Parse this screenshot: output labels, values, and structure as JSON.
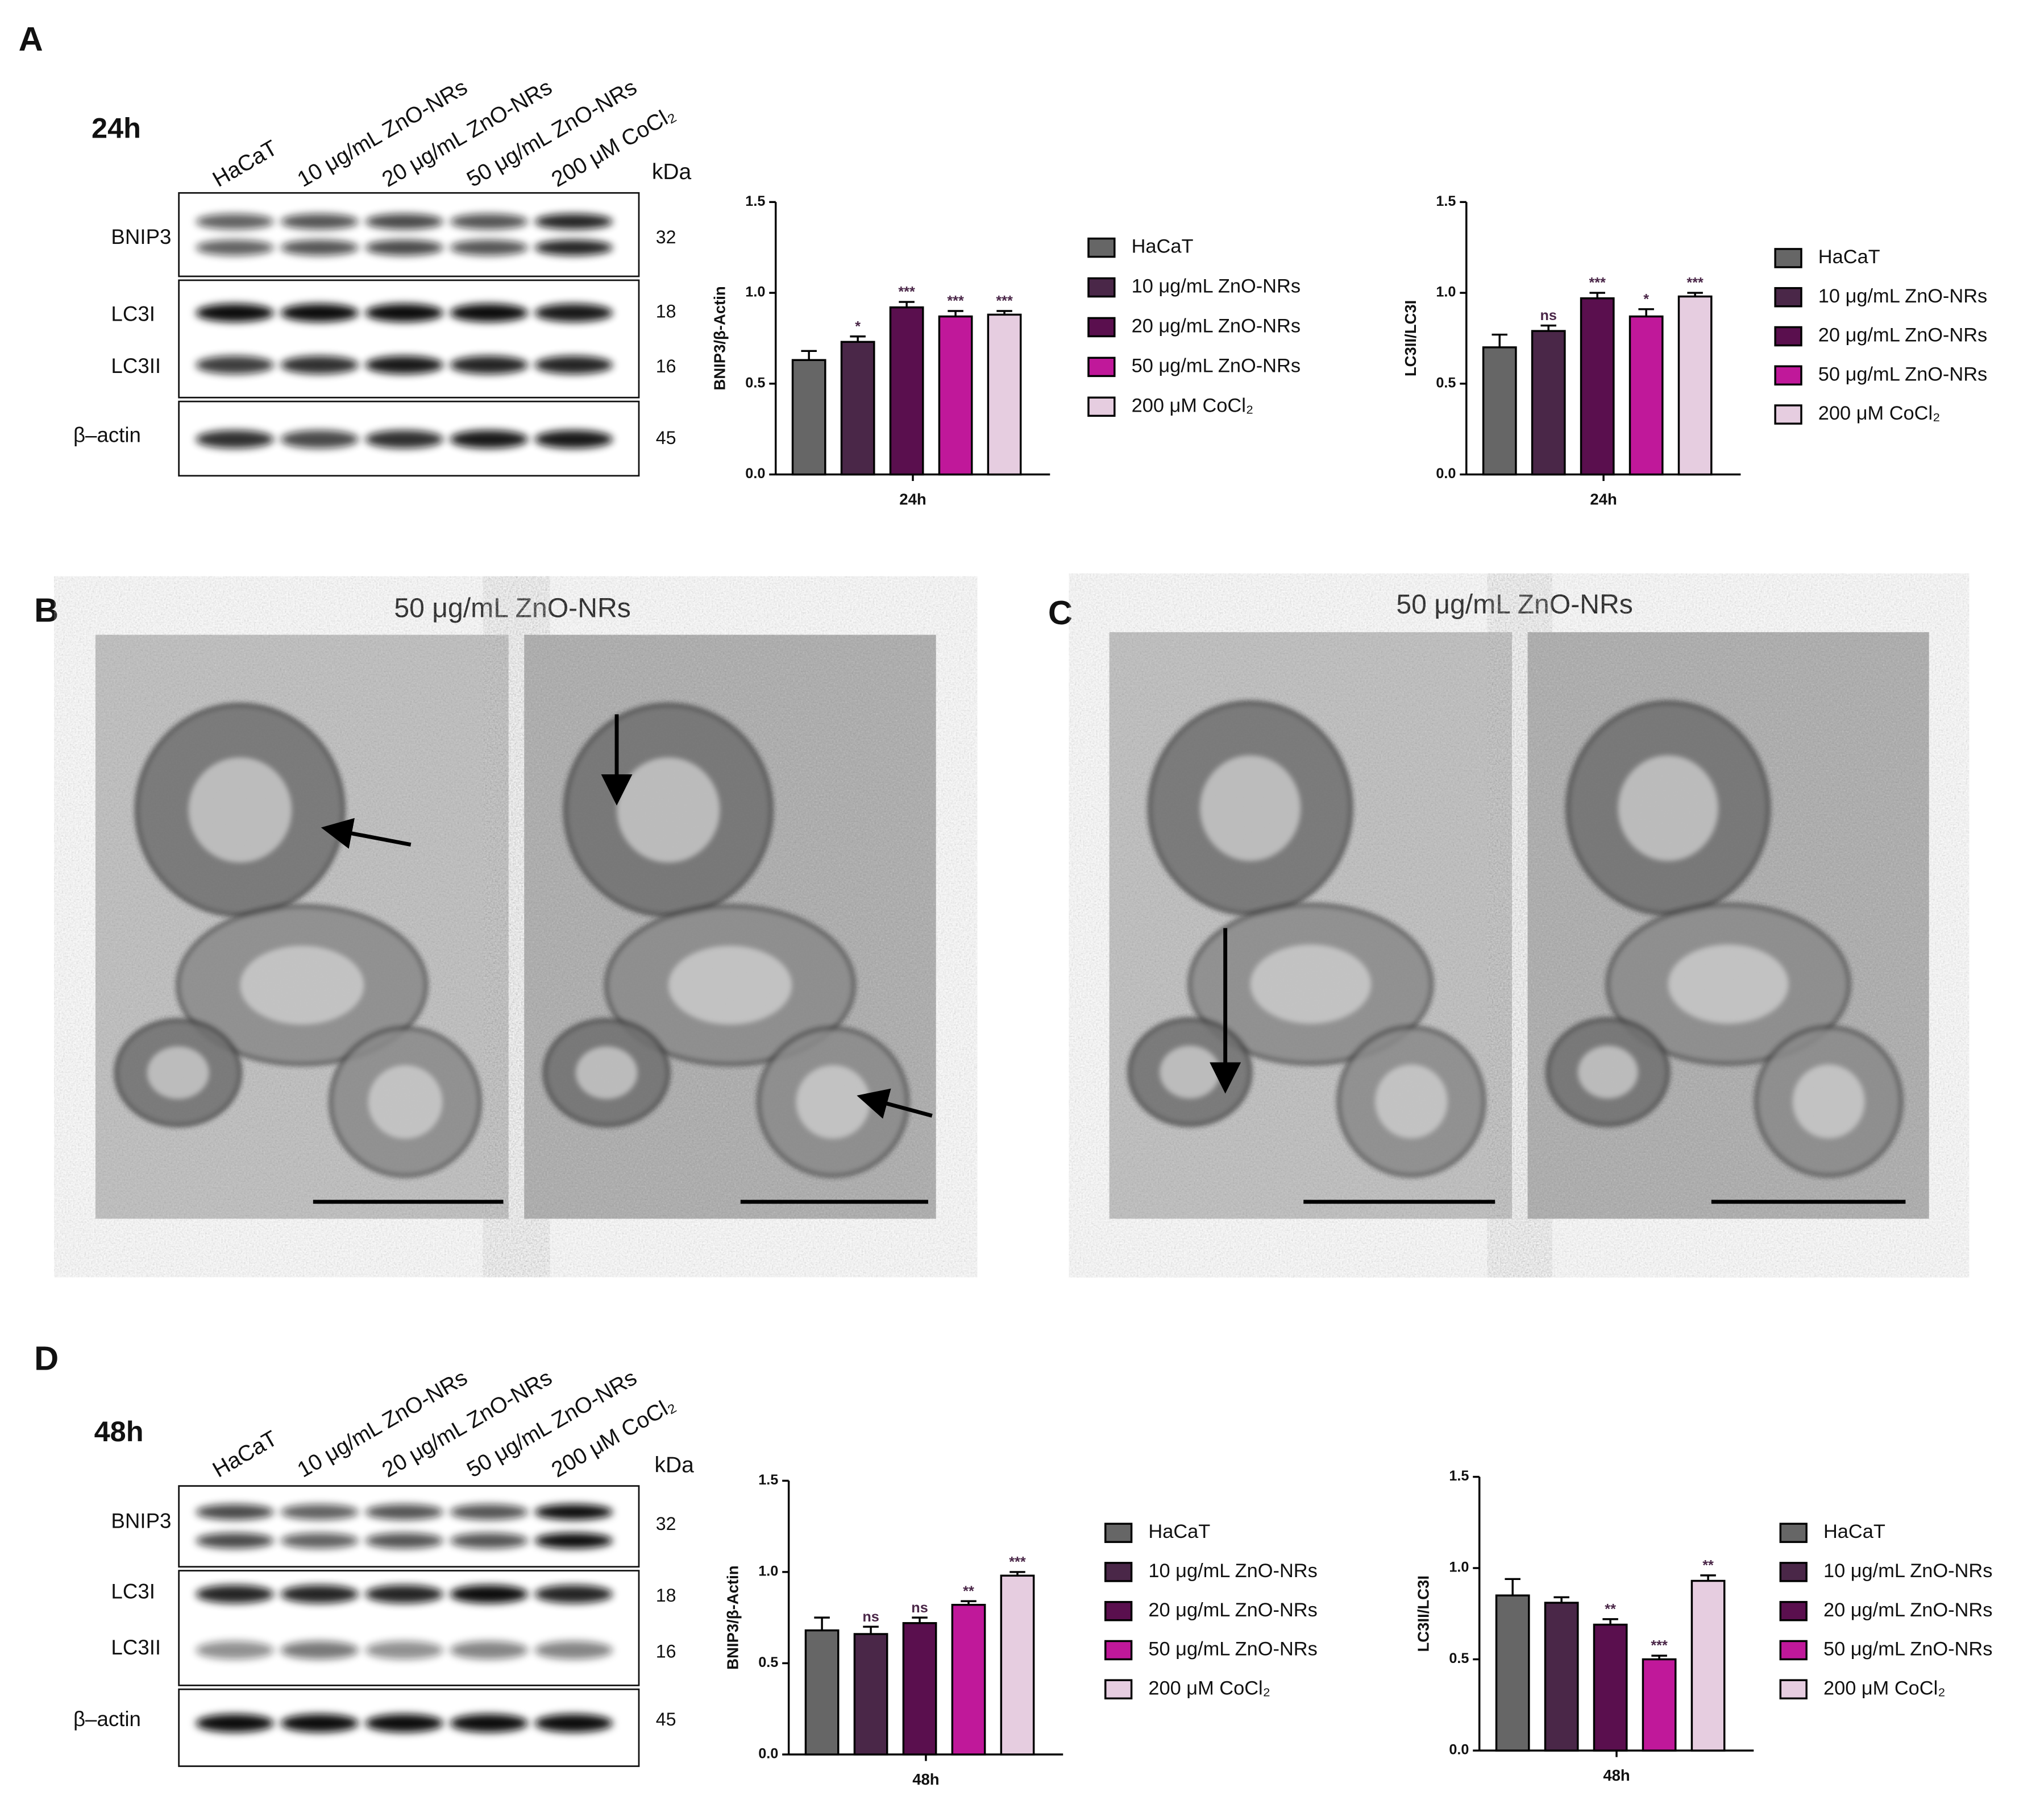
{
  "chart_data": [
    {
      "type": "bar",
      "ylabel": "BNIP3/β-Actin",
      "categories": [
        "24h"
      ],
      "ylim": [
        0,
        1.5
      ],
      "yticks": [
        {
          "value": 0,
          "label": "0.0"
        },
        {
          "value": 0.5,
          "label": "0.5"
        },
        {
          "value": 1,
          "label": "1.0"
        },
        {
          "value": 1.5,
          "label": "1.5"
        }
      ],
      "series": [
        {
          "name": "HaCaT",
          "color": "#666666",
          "values": [
            0.63
          ],
          "errors": [
            0.05
          ]
        },
        {
          "name": "10 μg/mL ZnO-NRs",
          "color": "#4a2748",
          "values": [
            0.73
          ],
          "errors": [
            0.03
          ],
          "annotations": [
            "*"
          ]
        },
        {
          "name": "20 μg/mL ZnO-NRs",
          "color": "#5a0f4e",
          "values": [
            0.92
          ],
          "errors": [
            0.03
          ],
          "annotations": [
            "***"
          ]
        },
        {
          "name": "50 μg/mL ZnO-NRs",
          "color": "#c0189a",
          "values": [
            0.87
          ],
          "errors": [
            0.03
          ],
          "annotations": [
            "***"
          ]
        },
        {
          "name": "200 μM CoCl₂",
          "color": "#e6cde0",
          "values": [
            0.88
          ],
          "errors": [
            0.02
          ],
          "annotations": [
            "***"
          ]
        }
      ]
    },
    {
      "type": "bar",
      "ylabel": "LC3II/LC3I",
      "categories": [
        "24h"
      ],
      "ylim": [
        0,
        1.5
      ],
      "yticks": [
        {
          "value": 0,
          "label": "0.0"
        },
        {
          "value": 0.5,
          "label": "0.5"
        },
        {
          "value": 1,
          "label": "1.0"
        },
        {
          "value": 1.5,
          "label": "1.5"
        }
      ],
      "series": [
        {
          "name": "HaCaT",
          "color": "#666666",
          "values": [
            0.7
          ],
          "errors": [
            0.07
          ]
        },
        {
          "name": "10 μg/mL ZnO-NRs",
          "color": "#4a2748",
          "values": [
            0.79
          ],
          "errors": [
            0.03
          ],
          "annotations": [
            "ns"
          ]
        },
        {
          "name": "20 μg/mL ZnO-NRs",
          "color": "#5a0f4e",
          "values": [
            0.97
          ],
          "errors": [
            0.03
          ],
          "annotations": [
            "***"
          ]
        },
        {
          "name": "50 μg/mL ZnO-NRs",
          "color": "#c0189a",
          "values": [
            0.87
          ],
          "errors": [
            0.04
          ],
          "annotations": [
            "*"
          ]
        },
        {
          "name": "200 μM CoCl₂",
          "color": "#e6cde0",
          "values": [
            0.98
          ],
          "errors": [
            0.02
          ],
          "annotations": [
            "***"
          ]
        }
      ]
    },
    {
      "type": "bar",
      "ylabel": "BNIP3/β-Actin",
      "categories": [
        "48h"
      ],
      "ylim": [
        0,
        1.5
      ],
      "yticks": [
        {
          "value": 0,
          "label": "0.0"
        },
        {
          "value": 0.5,
          "label": "0.5"
        },
        {
          "value": 1,
          "label": "1.0"
        },
        {
          "value": 1.5,
          "label": "1.5"
        }
      ],
      "series": [
        {
          "name": "HaCaT",
          "color": "#666666",
          "values": [
            0.68
          ],
          "errors": [
            0.07
          ]
        },
        {
          "name": "10 μg/mL ZnO-NRs",
          "color": "#4a2748",
          "values": [
            0.66
          ],
          "errors": [
            0.04
          ],
          "annotations": [
            "ns"
          ]
        },
        {
          "name": "20 μg/mL ZnO-NRs",
          "color": "#5a0f4e",
          "values": [
            0.72
          ],
          "errors": [
            0.03
          ],
          "annotations": [
            "ns"
          ]
        },
        {
          "name": "50 μg/mL ZnO-NRs",
          "color": "#c0189a",
          "values": [
            0.82
          ],
          "errors": [
            0.02
          ],
          "annotations": [
            "**"
          ]
        },
        {
          "name": "200 μM CoCl₂",
          "color": "#e6cde0",
          "values": [
            0.98
          ],
          "errors": [
            0.02
          ],
          "annotations": [
            "***"
          ]
        }
      ]
    },
    {
      "type": "bar",
      "ylabel": "LC3II/LC3I",
      "categories": [
        "48h"
      ],
      "ylim": [
        0,
        1.5
      ],
      "yticks": [
        {
          "value": 0,
          "label": "0.0"
        },
        {
          "value": 0.5,
          "label": "0.5"
        },
        {
          "value": 1,
          "label": "1.0"
        },
        {
          "value": 1.5,
          "label": "1.5"
        }
      ],
      "series": [
        {
          "name": "HaCaT",
          "color": "#666666",
          "values": [
            0.85
          ],
          "errors": [
            0.09
          ]
        },
        {
          "name": "10 μg/mL ZnO-NRs",
          "color": "#4a2748",
          "values": [
            0.81
          ],
          "errors": [
            0.03
          ]
        },
        {
          "name": "20 μg/mL ZnO-NRs",
          "color": "#5a0f4e",
          "values": [
            0.69
          ],
          "errors": [
            0.03
          ],
          "annotations": [
            "**"
          ]
        },
        {
          "name": "50 μg/mL ZnO-NRs",
          "color": "#c0189a",
          "values": [
            0.5
          ],
          "errors": [
            0.02
          ],
          "annotations": [
            "***"
          ]
        },
        {
          "name": "200 μM CoCl₂",
          "color": "#e6cde0",
          "values": [
            0.93
          ],
          "errors": [
            0.03
          ],
          "annotations": [
            "**"
          ]
        }
      ]
    }
  ],
  "panels": {
    "A": {
      "label": "A",
      "time": "24h",
      "lanes": [
        "HaCaT",
        "10 μg/mL ZnO-NRs",
        "20 μg/mL ZnO-NRs",
        "50 μg/mL ZnO-NRs",
        "200 μM CoCl₂"
      ],
      "kda_header": "kDa",
      "bands": [
        {
          "name": "BNIP3",
          "kda": 32
        },
        {
          "name": "LC3I",
          "kda": 18
        },
        {
          "name": "LC3II",
          "kda": 16
        },
        {
          "name": "β–actin",
          "kda": 45
        }
      ]
    },
    "B": {
      "label": "B",
      "title": "50 μg/mL ZnO-NRs"
    },
    "C": {
      "label": "C",
      "title": "50 μg/mL ZnO-NRs"
    },
    "D": {
      "label": "D",
      "time": "48h",
      "lanes": [
        "HaCaT",
        "10 μg/mL ZnO-NRs",
        "20 μg/mL ZnO-NRs",
        "50 μg/mL ZnO-NRs",
        "200 μM CoCl₂"
      ],
      "kda_header": "kDa",
      "bands": [
        {
          "name": "BNIP3",
          "kda": 32
        },
        {
          "name": "LC3I",
          "kda": 18
        },
        {
          "name": "LC3II",
          "kda": 16
        },
        {
          "name": "β–actin",
          "kda": 45
        }
      ]
    }
  }
}
